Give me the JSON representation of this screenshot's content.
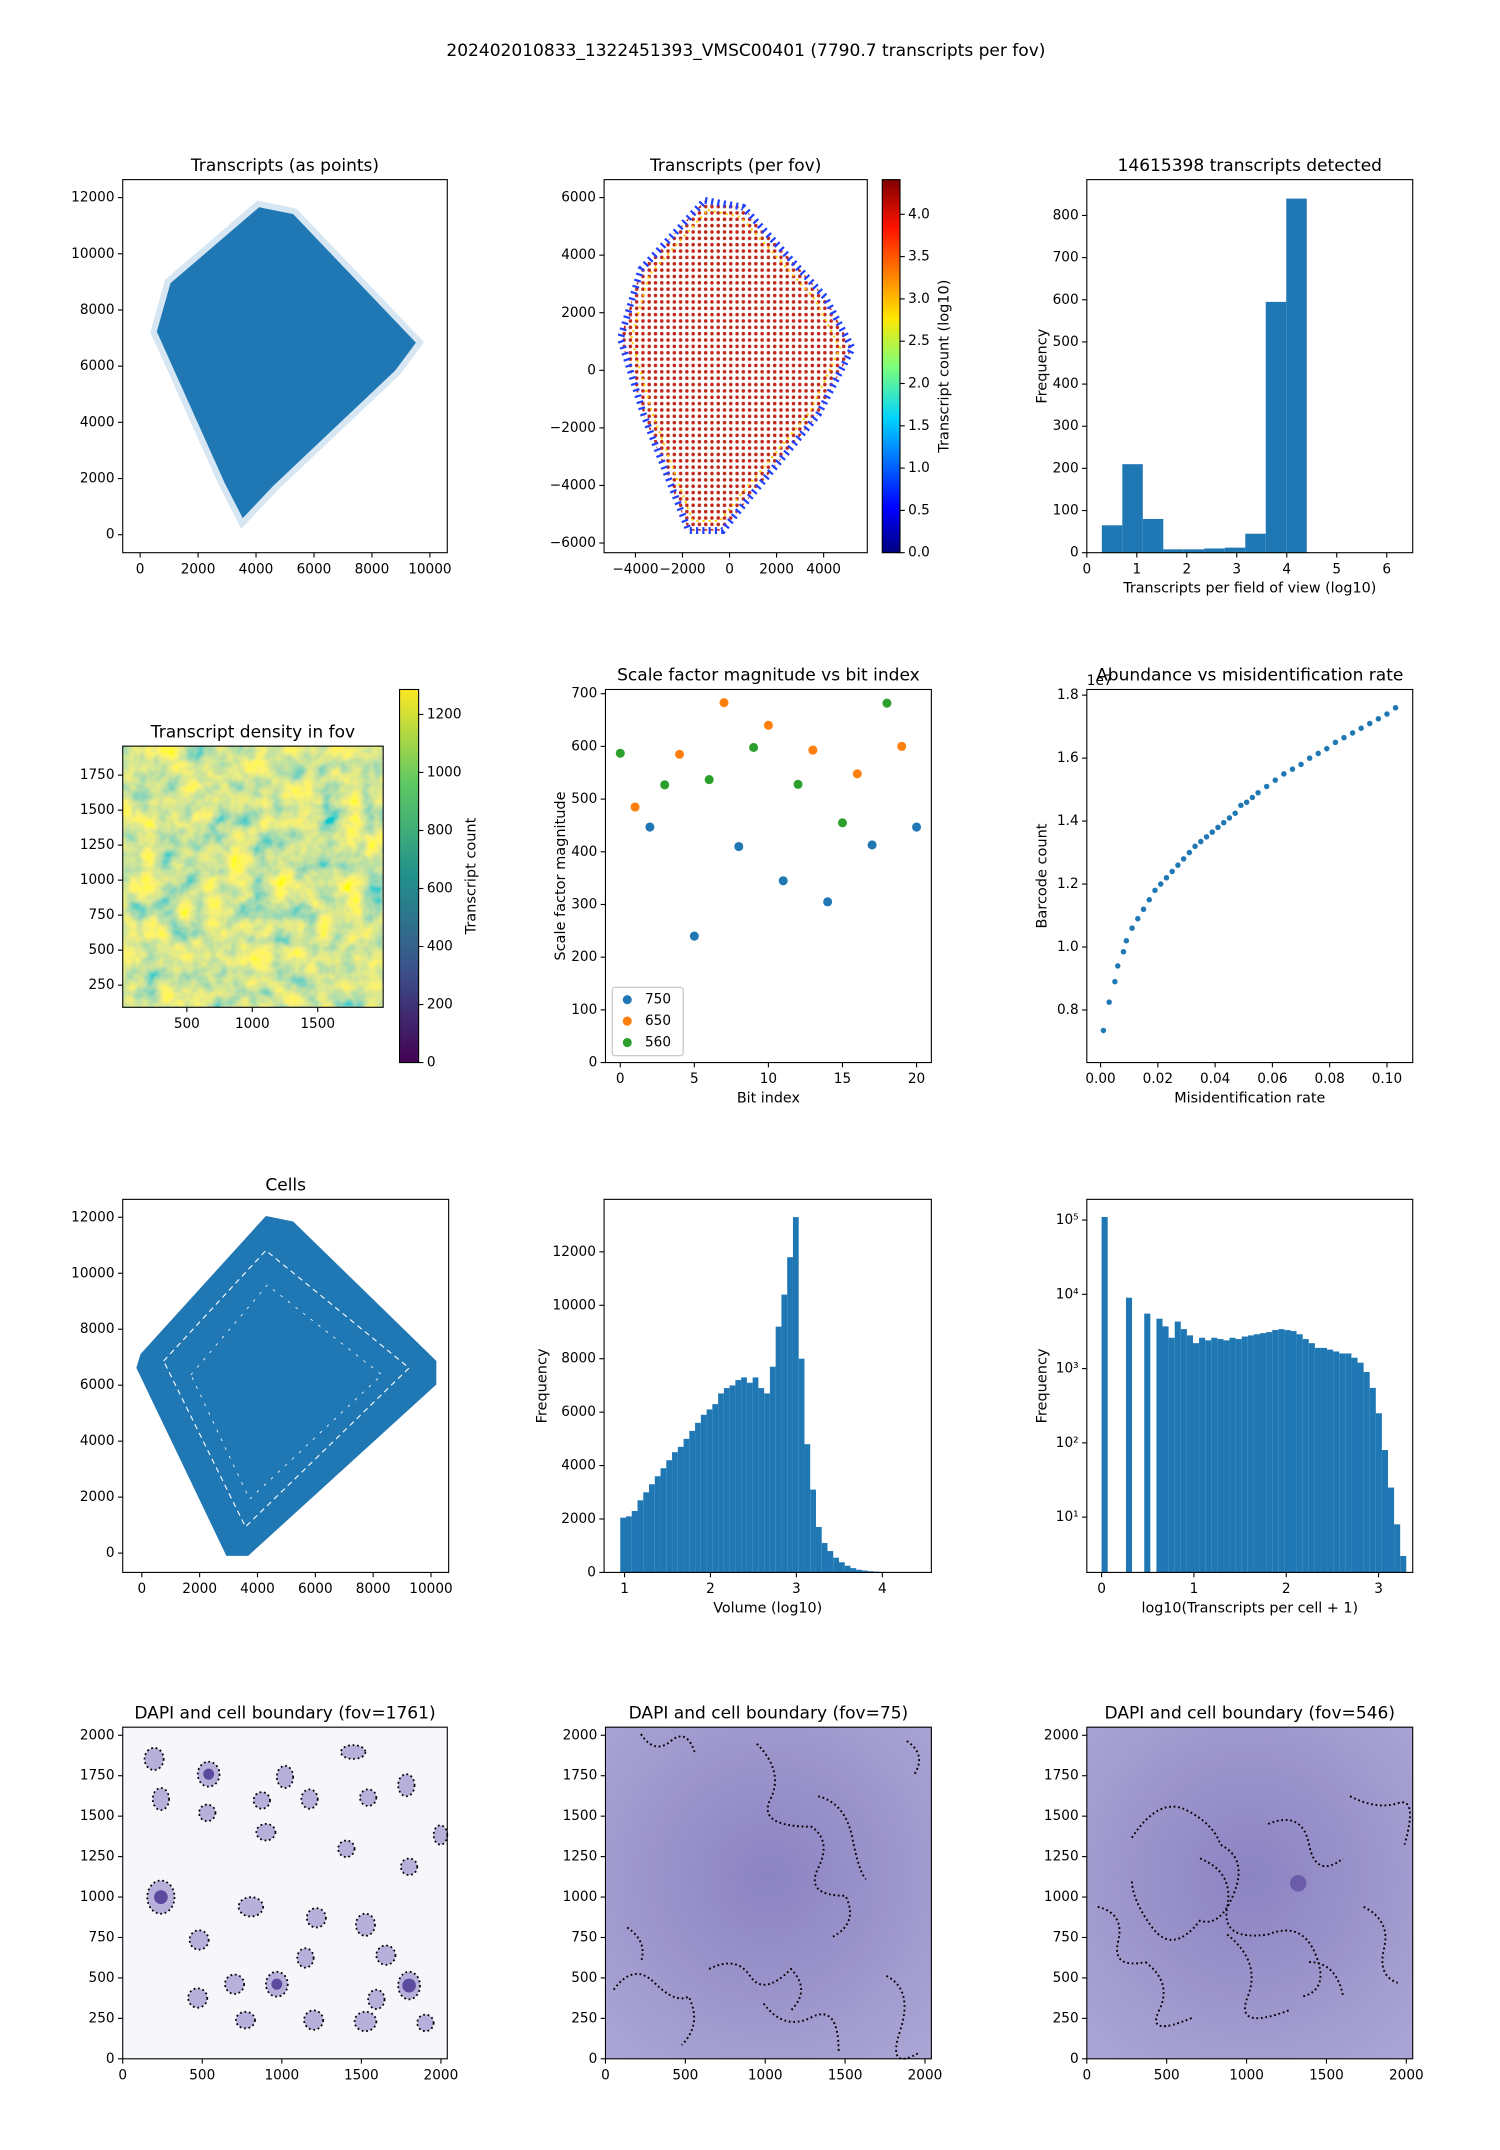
{
  "title": "202402010833_1322451393_VMSC00401 (7790.7 transcripts per fov)",
  "chart_data": [
    {
      "type": "image",
      "title": "Transcripts (as points)",
      "xlim": [
        -600,
        10600
      ],
      "ylim": [
        -640,
        12640
      ],
      "xticks": [
        0,
        2000,
        4000,
        6000,
        8000,
        10000
      ],
      "yticks": [
        0,
        2000,
        4000,
        6000,
        8000,
        10000,
        12000
      ]
    },
    {
      "type": "image",
      "title": "Transcripts (per fov)",
      "xlim": [
        -5333,
        5855
      ],
      "ylim": [
        -6336,
        6624
      ],
      "xticks": [
        {
          "value": -4000,
          "label": "−4000"
        },
        {
          "value": -2000,
          "label": "−2000"
        },
        0,
        2000,
        4000
      ],
      "yticks": [
        {
          "value": -6000,
          "label": "−6000"
        },
        {
          "value": -4000,
          "label": "−4000"
        },
        {
          "value": -2000,
          "label": "−2000"
        },
        0,
        2000,
        4000,
        6000
      ],
      "colorbar": {
        "label": "Transcript count (log10)",
        "colormap": "jet",
        "lim": [
          0,
          4.41
        ],
        "ticks": [
          {
            "value": 0,
            "label": "0.0"
          },
          0.5,
          {
            "value": 1,
            "label": "1.0"
          },
          1.5,
          {
            "value": 2,
            "label": "2.0"
          },
          2.5,
          {
            "value": 3,
            "label": "3.0"
          },
          3.5,
          {
            "value": 4,
            "label": "4.0"
          }
        ]
      }
    },
    {
      "type": "histogram",
      "title": "14615398 transcripts detected",
      "xlabel": "Transcripts per field of view (log10)",
      "ylabel": "Frequency",
      "color": "#1f77b4",
      "xlim": [
        0,
        6.52
      ],
      "ylim": [
        0,
        885
      ],
      "xticks": [
        0,
        1,
        2,
        3,
        4,
        5,
        6
      ],
      "yticks": [
        0,
        100,
        200,
        300,
        400,
        500,
        600,
        700,
        800
      ],
      "bins": [
        0.3,
        0.71,
        1.12,
        1.53,
        1.94,
        2.35,
        2.76,
        3.17,
        3.58,
        3.99,
        4.4
      ],
      "counts": [
        65,
        210,
        80,
        8,
        8,
        10,
        12,
        45,
        595,
        840
      ]
    },
    {
      "type": "image",
      "title": "Transcript density in fov",
      "xlim": [
        10,
        2000
      ],
      "ylim": [
        92,
        1957
      ],
      "xticks": [
        500,
        1000,
        1500
      ],
      "yticks": [
        250,
        500,
        750,
        1000,
        1250,
        1500,
        1750
      ],
      "colorbar": {
        "label": "Transcript count",
        "colormap": "viridis",
        "lim": [
          0,
          1286
        ],
        "ticks": [
          0,
          200,
          400,
          600,
          800,
          1000,
          1200
        ]
      }
    },
    {
      "type": "scatter",
      "title": "Scale factor magnitude vs bit index",
      "xlabel": "Bit index",
      "ylabel": "Scale factor magnitude",
      "xlim": [
        -1,
        21
      ],
      "ylim": [
        0,
        708
      ],
      "xticks": [
        0,
        5,
        10,
        15,
        20
      ],
      "yticks": [
        0,
        100,
        200,
        300,
        400,
        500,
        600,
        700
      ],
      "legend": "lower left",
      "series": [
        {
          "name": "750",
          "color": "#1f77b4",
          "x": [
            2,
            5,
            8,
            11,
            14,
            17,
            20
          ],
          "values": [
            447,
            240,
            410,
            345,
            305,
            413,
            447
          ]
        },
        {
          "name": "650",
          "color": "#ff7f0e",
          "x": [
            1,
            4,
            7,
            10,
            13,
            16,
            19
          ],
          "values": [
            485,
            585,
            683,
            640,
            593,
            548,
            600
          ]
        },
        {
          "name": "560",
          "color": "#2ca02c",
          "x": [
            0,
            3,
            6,
            9,
            12,
            15,
            18
          ],
          "values": [
            587,
            527,
            537,
            598,
            528,
            455,
            682
          ]
        }
      ]
    },
    {
      "type": "scatter",
      "title": "Abundance vs misidentification rate",
      "xlabel": "Misidentification rate",
      "ylabel": "Barcode count",
      "y_offset_label": "1e7",
      "xlim": [
        -0.0048,
        0.109
      ],
      "ylim": [
        0.633,
        1.818
      ],
      "xticks": [
        {
          "value": 0,
          "label": "0.00"
        },
        {
          "value": 0.02,
          "label": "0.02"
        },
        {
          "value": 0.04,
          "label": "0.04"
        },
        {
          "value": 0.06,
          "label": "0.06"
        },
        {
          "value": 0.08,
          "label": "0.08"
        },
        {
          "value": 0.1,
          "label": "0.10"
        }
      ],
      "yticks": [
        0.8,
        {
          "value": 1,
          "label": "1.0"
        },
        1.2,
        1.4,
        1.6,
        1.8
      ],
      "series": [
        {
          "color": "#1f77b4",
          "x": [
            0.001,
            0.003,
            0.005,
            0.006,
            0.008,
            0.009,
            0.011,
            0.013,
            0.015,
            0.017,
            0.019,
            0.021,
            0.023,
            0.025,
            0.027,
            0.029,
            0.031,
            0.033,
            0.035,
            0.037,
            0.039,
            0.041,
            0.043,
            0.045,
            0.047,
            0.049,
            0.051,
            0.053,
            0.055,
            0.058,
            0.061,
            0.064,
            0.067,
            0.07,
            0.073,
            0.076,
            0.079,
            0.082,
            0.085,
            0.088,
            0.091,
            0.094,
            0.097,
            0.1,
            0.103
          ],
          "values": [
            0.735,
            0.825,
            0.89,
            0.94,
            0.985,
            1.02,
            1.06,
            1.09,
            1.12,
            1.15,
            1.18,
            1.2,
            1.22,
            1.24,
            1.26,
            1.28,
            1.3,
            1.32,
            1.335,
            1.35,
            1.365,
            1.38,
            1.395,
            1.41,
            1.425,
            1.45,
            1.46,
            1.475,
            1.49,
            1.51,
            1.53,
            1.55,
            1.565,
            1.58,
            1.6,
            1.615,
            1.63,
            1.65,
            1.665,
            1.68,
            1.695,
            1.71,
            1.725,
            1.74,
            1.76
          ]
        }
      ]
    },
    {
      "type": "image",
      "title": "Cells",
      "xlim": [
        -660,
        10610
      ],
      "ylim": [
        -690,
        12640
      ],
      "xticks": [
        0,
        2000,
        4000,
        6000,
        8000,
        10000
      ],
      "yticks": [
        0,
        2000,
        4000,
        6000,
        8000,
        10000,
        12000
      ]
    },
    {
      "type": "histogram",
      "xlabel": "Volume (log10)",
      "ylabel": "Frequency",
      "color": "#1f77b4",
      "xlim": [
        0.762,
        4.571
      ],
      "ylim": [
        0,
        13965
      ],
      "xticks": [
        1,
        2,
        3,
        4
      ],
      "yticks": [
        0,
        2000,
        4000,
        6000,
        8000,
        10000,
        12000
      ],
      "bins": [
        0.95,
        1.017,
        1.084,
        1.151,
        1.218,
        1.285,
        1.352,
        1.419,
        1.486,
        1.553,
        1.62,
        1.687,
        1.754,
        1.821,
        1.888,
        1.955,
        2.022,
        2.089,
        2.156,
        2.223,
        2.29,
        2.357,
        2.424,
        2.491,
        2.558,
        2.625,
        2.692,
        2.759,
        2.826,
        2.893,
        2.96,
        3.027,
        3.094,
        3.161,
        3.228,
        3.295,
        3.362,
        3.429,
        3.496,
        3.563,
        3.63,
        3.697,
        3.764,
        3.831,
        3.898,
        3.965,
        4.032,
        4.099,
        4.166,
        4.233,
        4.3
      ],
      "counts": [
        2050,
        2100,
        2300,
        2700,
        3000,
        3300,
        3600,
        3900,
        4200,
        4500,
        4700,
        5000,
        5300,
        5600,
        5900,
        6100,
        6300,
        6700,
        6900,
        7000,
        7200,
        7300,
        7100,
        7300,
        6900,
        6700,
        7700,
        9200,
        10400,
        11800,
        13300,
        8000,
        4800,
        3100,
        1700,
        1100,
        800,
        550,
        380,
        250,
        160,
        100,
        70,
        45,
        30,
        20,
        12,
        8,
        5,
        3
      ]
    },
    {
      "type": "histogram",
      "xlabel": "log10(Transcripts per cell + 1)",
      "ylabel": "Frequency",
      "color": "#1f77b4",
      "yscale": "log",
      "xlim": [
        -0.16,
        3.37
      ],
      "ylim": [
        1.8,
        190000
      ],
      "xticks": [
        0,
        1,
        2,
        3
      ],
      "yticks": [
        {
          "value": 10,
          "label": "10¹"
        },
        {
          "value": 100,
          "label": "10²"
        },
        {
          "value": 1000,
          "label": "10³"
        },
        {
          "value": 10000,
          "label": "10⁴"
        },
        {
          "value": 100000,
          "label": "10⁵"
        }
      ],
      "bins": [
        0,
        0.066,
        0.132,
        0.198,
        0.264,
        0.33,
        0.396,
        0.462,
        0.528,
        0.594,
        0.66,
        0.726,
        0.792,
        0.858,
        0.924,
        0.99,
        1.056,
        1.122,
        1.188,
        1.254,
        1.32,
        1.386,
        1.452,
        1.518,
        1.584,
        1.65,
        1.716,
        1.782,
        1.848,
        1.914,
        1.98,
        2.046,
        2.112,
        2.178,
        2.244,
        2.31,
        2.376,
        2.442,
        2.508,
        2.574,
        2.64,
        2.706,
        2.772,
        2.838,
        2.904,
        2.97,
        3.036,
        3.102,
        3.168,
        3.234,
        3.3
      ],
      "counts": [
        110000,
        0,
        0,
        0,
        9000,
        0,
        0,
        5500,
        0,
        4700,
        3700,
        2600,
        4300,
        3400,
        2800,
        2200,
        2600,
        2400,
        2600,
        2500,
        2400,
        2600,
        2500,
        2700,
        2800,
        2900,
        3000,
        3100,
        3300,
        3400,
        3300,
        3200,
        2900,
        2500,
        2200,
        1900,
        1900,
        1800,
        1700,
        1600,
        1600,
        1400,
        1200,
        900,
        550,
        250,
        80,
        25,
        8,
        3
      ]
    },
    {
      "type": "image",
      "title": "DAPI and cell boundary (fov=1761)",
      "xlim": [
        0,
        2040
      ],
      "ylim": [
        0,
        2050
      ],
      "xticks": [
        0,
        500,
        1000,
        1500,
        2000
      ],
      "yticks": [
        0,
        250,
        500,
        750,
        1000,
        1250,
        1500,
        1750,
        2000
      ]
    },
    {
      "type": "image",
      "title": "DAPI and cell boundary (fov=75)",
      "xlim": [
        0,
        2040
      ],
      "ylim": [
        0,
        2050
      ],
      "xticks": [
        0,
        500,
        1000,
        1500,
        2000
      ],
      "yticks": [
        0,
        250,
        500,
        750,
        1000,
        1250,
        1500,
        1750,
        2000
      ]
    },
    {
      "type": "image",
      "title": "DAPI and cell boundary (fov=546)",
      "xlim": [
        0,
        2040
      ],
      "ylim": [
        0,
        2050
      ],
      "xticks": [
        0,
        500,
        1000,
        1500,
        2000
      ],
      "yticks": [
        0,
        250,
        500,
        750,
        1000,
        1250,
        1500,
        1750,
        2000
      ]
    }
  ]
}
